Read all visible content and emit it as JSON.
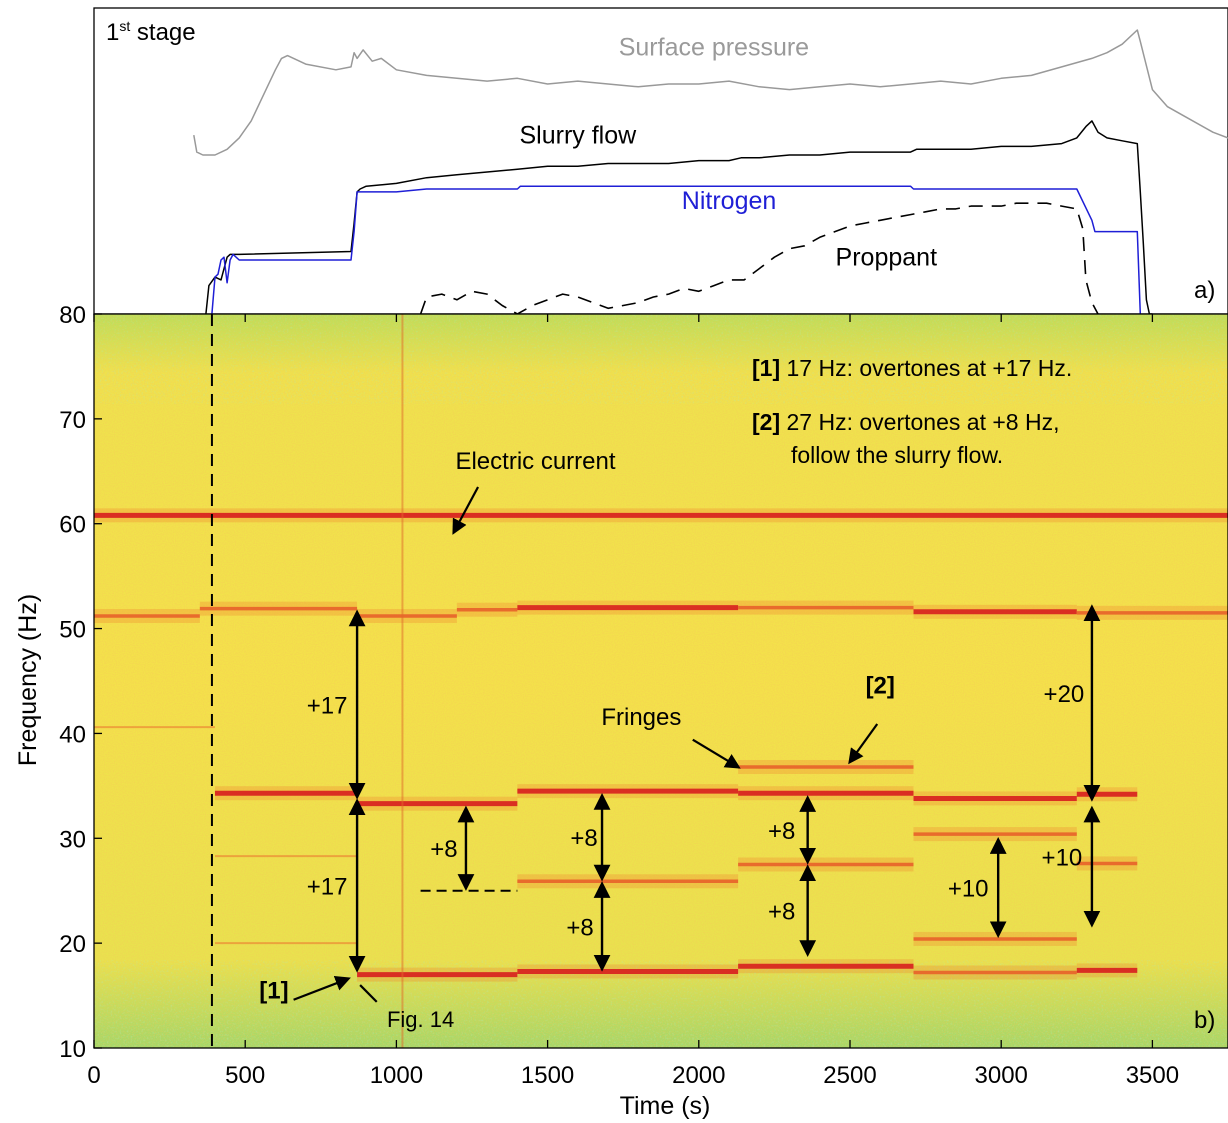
{
  "chart_data": [
    {
      "panel": "a)",
      "type": "line",
      "stage_label": "1st stage",
      "stage_label_main": "1",
      "stage_label_sup": "st",
      "stage_label_rest": " stage",
      "x_units": "Time (s)",
      "y_axis": "unlabeled (relative scale)",
      "colors": {
        "surface_pressure": "#999999",
        "slurry_flow": "#000000",
        "nitrogen": "#1f1fd6",
        "proppant": "#000000"
      },
      "series": [
        {
          "name": "Surface pressure",
          "label_color": "#9a9a9a",
          "x": [
            330,
            340,
            360,
            400,
            440,
            480,
            520,
            560,
            600,
            620,
            640,
            700,
            800,
            850,
            860,
            870,
            890,
            920,
            950,
            1000,
            1100,
            1200,
            1300,
            1400,
            1500,
            1600,
            1700,
            1800,
            1900,
            2000,
            2100,
            2200,
            2300,
            2400,
            2500,
            2600,
            2700,
            2800,
            2900,
            3000,
            3100,
            3200,
            3300,
            3350,
            3400,
            3450,
            3460,
            3500,
            3550,
            3600,
            3700,
            3800
          ],
          "y": [
            0.63,
            0.57,
            0.56,
            0.56,
            0.58,
            0.62,
            0.68,
            0.77,
            0.86,
            0.9,
            0.91,
            0.88,
            0.86,
            0.87,
            0.92,
            0.9,
            0.93,
            0.89,
            0.9,
            0.86,
            0.84,
            0.83,
            0.82,
            0.83,
            0.81,
            0.82,
            0.81,
            0.8,
            0.81,
            0.81,
            0.82,
            0.8,
            0.79,
            0.8,
            0.81,
            0.8,
            0.81,
            0.82,
            0.81,
            0.83,
            0.84,
            0.87,
            0.9,
            0.92,
            0.95,
            1.0,
            0.96,
            0.79,
            0.73,
            0.7,
            0.64,
            0.6
          ]
        },
        {
          "name": "Slurry flow",
          "label_color": "#000000",
          "x": [
            370,
            380,
            400,
            420,
            440,
            450,
            480,
            850,
            860,
            870,
            880,
            900,
            1000,
            1100,
            1200,
            1300,
            1400,
            1500,
            1600,
            1700,
            1800,
            1900,
            2000,
            2100,
            2140,
            2200,
            2300,
            2400,
            2500,
            2600,
            2700,
            2720,
            2800,
            2900,
            3000,
            3100,
            3200,
            3250,
            3280,
            3300,
            3320,
            3350,
            3400,
            3450,
            3460,
            3470,
            3480,
            3490,
            3500
          ],
          "y": [
            0.0,
            0.1,
            0.13,
            0.12,
            0.2,
            0.21,
            0.21,
            0.22,
            0.32,
            0.43,
            0.44,
            0.45,
            0.46,
            0.48,
            0.49,
            0.5,
            0.51,
            0.52,
            0.52,
            0.53,
            0.53,
            0.53,
            0.54,
            0.54,
            0.55,
            0.55,
            0.56,
            0.56,
            0.57,
            0.57,
            0.57,
            0.58,
            0.58,
            0.58,
            0.59,
            0.59,
            0.6,
            0.62,
            0.66,
            0.68,
            0.64,
            0.62,
            0.61,
            0.6,
            0.43,
            0.25,
            0.05,
            0.0,
            0.0
          ]
        },
        {
          "name": "Nitrogen",
          "label_color": "#1f1fd6",
          "x": [
            390,
            400,
            410,
            420,
            430,
            440,
            450,
            460,
            480,
            850,
            860,
            870,
            880,
            900,
            1000,
            1100,
            1200,
            1300,
            1400,
            1410,
            1500,
            1600,
            1700,
            1800,
            1900,
            2000,
            2100,
            2200,
            2300,
            2400,
            2500,
            2600,
            2700,
            2710,
            2750,
            2800,
            2900,
            3000,
            3100,
            3200,
            3240,
            3250,
            3300,
            3310,
            3400,
            3450,
            3460
          ],
          "y": [
            0.0,
            0.13,
            0.14,
            0.19,
            0.2,
            0.11,
            0.19,
            0.21,
            0.19,
            0.19,
            0.29,
            0.43,
            0.43,
            0.43,
            0.43,
            0.44,
            0.44,
            0.44,
            0.44,
            0.45,
            0.45,
            0.45,
            0.45,
            0.45,
            0.45,
            0.45,
            0.45,
            0.45,
            0.45,
            0.45,
            0.45,
            0.45,
            0.45,
            0.44,
            0.44,
            0.44,
            0.44,
            0.44,
            0.44,
            0.44,
            0.44,
            0.44,
            0.33,
            0.29,
            0.29,
            0.29,
            0.0
          ]
        },
        {
          "name": "Proppant",
          "label_color": "#000000",
          "dashed": true,
          "x": [
            1080,
            1100,
            1150,
            1200,
            1250,
            1300,
            1350,
            1400,
            1450,
            1500,
            1550,
            1600,
            1650,
            1700,
            1750,
            1800,
            1850,
            1900,
            1950,
            2000,
            2050,
            2100,
            2150,
            2200,
            2250,
            2300,
            2350,
            2400,
            2450,
            2500,
            2550,
            2600,
            2650,
            2700,
            2750,
            2800,
            2850,
            2900,
            2950,
            3000,
            3050,
            3100,
            3150,
            3200,
            3250,
            3270,
            3280,
            3300,
            3320
          ],
          "y": [
            0.0,
            0.06,
            0.07,
            0.05,
            0.08,
            0.07,
            0.03,
            0.0,
            0.03,
            0.05,
            0.07,
            0.06,
            0.04,
            0.02,
            0.03,
            0.04,
            0.06,
            0.07,
            0.09,
            0.08,
            0.1,
            0.12,
            0.12,
            0.16,
            0.2,
            0.23,
            0.24,
            0.27,
            0.29,
            0.31,
            0.32,
            0.33,
            0.34,
            0.35,
            0.36,
            0.37,
            0.37,
            0.38,
            0.38,
            0.38,
            0.39,
            0.39,
            0.39,
            0.38,
            0.37,
            0.3,
            0.12,
            0.04,
            0.0
          ]
        }
      ],
      "annotations": [
        {
          "text": "Surface pressure",
          "x": 2050,
          "y": 0.91
        },
        {
          "text": "Slurry flow",
          "x": 1600,
          "y": 0.6
        },
        {
          "text": "Nitrogen",
          "x": 2100,
          "y": 0.37
        },
        {
          "text": "Proppant",
          "x": 2620,
          "y": 0.17
        }
      ]
    },
    {
      "panel": "b)",
      "type": "heatmap",
      "xlabel": "Time (s)",
      "ylabel": "Frequency (Hz)",
      "xlim": [
        0,
        3800
      ],
      "ylim": [
        10,
        80
      ],
      "xticks": [
        0,
        500,
        1000,
        1500,
        2000,
        2500,
        3000,
        3500
      ],
      "yticks": [
        10,
        20,
        30,
        40,
        50,
        60,
        70,
        80
      ],
      "colors": {
        "background": "#f2e24c",
        "low_energy": "#7fd27c",
        "strong_line": "#d81f1f",
        "medium_line": "#e8622a"
      },
      "dashed_vertical_marker": {
        "x": 390
      },
      "spectral_lines": [
        {
          "label": "Electric current",
          "x_range": [
            0,
            3800
          ],
          "freq": 60.8,
          "strength": "strong"
        },
        {
          "x_range": [
            0,
            350
          ],
          "freq": 51.2,
          "strength": "medium"
        },
        {
          "x_range": [
            350,
            870
          ],
          "freq": 51.9,
          "strength": "medium"
        },
        {
          "x_range": [
            870,
            1200
          ],
          "freq": 51.2,
          "strength": "medium"
        },
        {
          "x_range": [
            1200,
            1400
          ],
          "freq": 51.8,
          "strength": "medium"
        },
        {
          "x_range": [
            1400,
            2130
          ],
          "freq": 52.0,
          "strength": "strong"
        },
        {
          "x_range": [
            2130,
            2710
          ],
          "freq": 52.0,
          "strength": "medium"
        },
        {
          "x_range": [
            2710,
            3250
          ],
          "freq": 51.6,
          "strength": "strong"
        },
        {
          "x_range": [
            3250,
            3800
          ],
          "freq": 51.5,
          "strength": "medium"
        },
        {
          "x_range": [
            400,
            870
          ],
          "freq": 34.3,
          "strength": "strong"
        },
        {
          "x_range": [
            870,
            1400
          ],
          "freq": 33.3,
          "strength": "strong"
        },
        {
          "x_range": [
            1400,
            2130
          ],
          "freq": 34.5,
          "strength": "strong"
        },
        {
          "x_range": [
            2130,
            2710
          ],
          "freq": 34.3,
          "strength": "strong"
        },
        {
          "x_range": [
            2710,
            3250
          ],
          "freq": 33.8,
          "strength": "strong"
        },
        {
          "x_range": [
            3250,
            3450
          ],
          "freq": 34.2,
          "strength": "strong"
        },
        {
          "x_range": [
            2130,
            2710
          ],
          "freq": 36.8,
          "strength": "medium"
        },
        {
          "x_range": [
            2130,
            2710
          ],
          "freq": 27.5,
          "strength": "medium"
        },
        {
          "x_range": [
            1400,
            2130
          ],
          "freq": 25.9,
          "strength": "medium"
        },
        {
          "x_range": [
            2710,
            3250
          ],
          "freq": 30.4,
          "strength": "medium"
        },
        {
          "x_range": [
            2710,
            3250
          ],
          "freq": 20.4,
          "strength": "medium"
        },
        {
          "x_range": [
            3250,
            3450
          ],
          "freq": 27.6,
          "strength": "medium"
        },
        {
          "x_range": [
            400,
            870
          ],
          "freq": 28.3,
          "strength": "weak"
        },
        {
          "x_range": [
            400,
            870
          ],
          "freq": 20.0,
          "strength": "weak"
        },
        {
          "x_range": [
            870,
            1400
          ],
          "freq": 17.0,
          "strength": "strong"
        },
        {
          "x_range": [
            1400,
            2130
          ],
          "freq": 17.3,
          "strength": "strong"
        },
        {
          "x_range": [
            2130,
            2710
          ],
          "freq": 17.8,
          "strength": "strong"
        },
        {
          "x_range": [
            2710,
            3250
          ],
          "freq": 17.2,
          "strength": "medium"
        },
        {
          "x_range": [
            3250,
            3450
          ],
          "freq": 17.4,
          "strength": "strong"
        },
        {
          "x_range": [
            0,
            400
          ],
          "freq": 40.6,
          "strength": "weak"
        }
      ],
      "dashed_guide": {
        "x_range": [
          1080,
          1400
        ],
        "freq": 25.0
      },
      "arrows": [
        {
          "label": "+17",
          "x": 870,
          "from": 51.5,
          "to": 34.0
        },
        {
          "label": "+17",
          "x": 870,
          "from": 33.5,
          "to": 17.5
        },
        {
          "label": "+8",
          "x": 1230,
          "from": 32.8,
          "to": 25.3
        },
        {
          "label": "+8",
          "x": 1680,
          "from": 34.0,
          "to": 26.2
        },
        {
          "label": "+8",
          "x": 1680,
          "from": 25.6,
          "to": 17.6
        },
        {
          "label": "+8",
          "x": 2360,
          "from": 33.8,
          "to": 27.8
        },
        {
          "label": "+8",
          "x": 2360,
          "from": 27.2,
          "to": 19.0
        },
        {
          "label": "+10",
          "x": 2990,
          "from": 29.8,
          "to": 20.8
        },
        {
          "label": "+20",
          "x": 3300,
          "from": 52.0,
          "to": 33.8
        },
        {
          "label": "+10",
          "x": 3300,
          "from": 32.8,
          "to": 21.8
        }
      ],
      "annotations": [
        {
          "text": "Electric current"
        },
        {
          "text": "Fringes"
        },
        {
          "text": "[2]"
        },
        {
          "text": "[1]"
        },
        {
          "text": "Fig. 14"
        }
      ],
      "legend_notes": [
        {
          "tag": "[1]",
          "text": " 17 Hz: overtones at +17 Hz."
        },
        {
          "tag": "[2]",
          "text": " 27 Hz: overtones at +8 Hz,",
          "text2": "follow the slurry flow."
        }
      ]
    }
  ]
}
